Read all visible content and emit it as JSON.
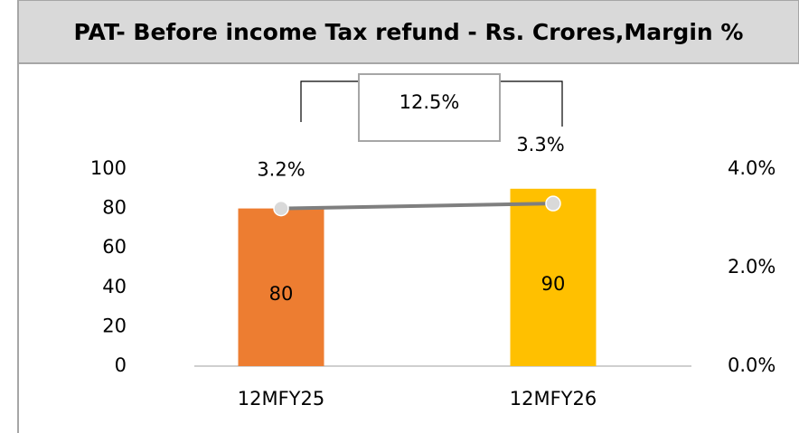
{
  "chart_data": {
    "type": "bar",
    "title": "PAT- Before income Tax refund - Rs. Crores,Margin %",
    "annotation": "12.5%",
    "categories": [
      "12MFY25",
      "12MFY26"
    ],
    "series": [
      {
        "type": "bar",
        "colors": [
          "#ed7d31",
          "#ffc000"
        ],
        "values": [
          80,
          90
        ]
      },
      {
        "type": "line",
        "axis": "y2",
        "color": "#7f7f7f",
        "values": [
          3.2,
          3.3
        ],
        "value_labels": [
          "3.2%",
          "3.3%"
        ]
      }
    ],
    "ylim": [
      0,
      100
    ],
    "yticks": [
      0,
      20,
      40,
      60,
      80,
      100
    ],
    "y2lim": [
      0,
      4
    ],
    "y2ticks": [
      {
        "value": 0,
        "label": "0.0%"
      },
      {
        "value": 2,
        "label": "2.0%"
      },
      {
        "value": 4,
        "label": "4.0%"
      }
    ]
  }
}
